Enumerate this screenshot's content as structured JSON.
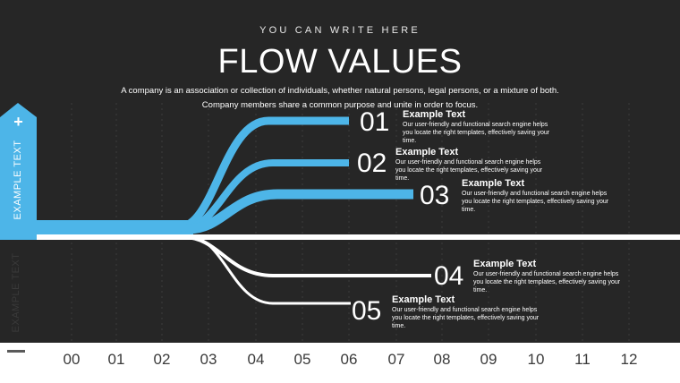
{
  "header": {
    "kicker": "YOU CAN WRITE HERE",
    "title": "FLOW VALUES",
    "description": "A company is an association or collection of individuals, whether natural persons, legal persons, or a mixture of both. Company members share a common purpose and unite in order to focus."
  },
  "side": {
    "top_label": "EXAMPLE TEXT",
    "top_symbol": "+",
    "bottom_label": "EXAMPLE TEXT"
  },
  "axis": {
    "ticks": [
      "00",
      "01",
      "02",
      "03",
      "04",
      "05",
      "06",
      "07",
      "08",
      "09",
      "10",
      "11",
      "12"
    ]
  },
  "flows": [
    {
      "num": "01",
      "title": "Example Text",
      "body": "Our user-friendly and functional search engine helps you locate the right templates, effectively saving your time.",
      "direction": "up",
      "end_tick": 6.0
    },
    {
      "num": "02",
      "title": "Example Text",
      "body": "Our user-friendly and functional search engine helps you locate the right templates, effectively saving your time.",
      "direction": "up",
      "end_tick": 6.0
    },
    {
      "num": "03",
      "title": "Example Text",
      "body": "Our user-friendly and functional search engine helps you locate the right templates, effectively saving your time.",
      "direction": "up",
      "end_tick": 7.4
    },
    {
      "num": "04",
      "title": "Example Text",
      "body": "Our user-friendly and functional search engine helps you locate the right templates, effectively saving your time.",
      "direction": "down",
      "end_tick": 7.8
    },
    {
      "num": "05",
      "title": "Example Text",
      "body": "Our user-friendly and functional search engine helps you locate the right templates, effectively saving your time.",
      "direction": "down",
      "end_tick": 6.0
    }
  ],
  "colors": {
    "background": "#262626",
    "accent": "#4db5e8",
    "baseline": "#ffffff",
    "tick_text": "#3a3a3a"
  }
}
